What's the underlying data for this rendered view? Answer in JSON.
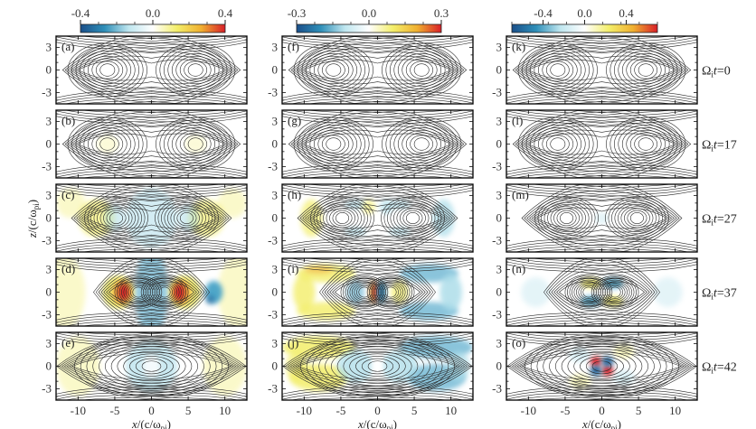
{
  "chart_data": {
    "type": "heatmap",
    "title": "",
    "xlabel": "x/(c/ωpi)",
    "ylabel": "z/(c/ωpi)",
    "xlim": [
      -13,
      13
    ],
    "ylim": [
      -4.5,
      4.5
    ],
    "xticks": [
      -10,
      -5,
      0,
      5,
      10
    ],
    "yticks": [
      3,
      0,
      -3
    ],
    "xtick_labels": [
      "-10",
      "-5",
      "0",
      "5",
      "10"
    ],
    "ytick_labels": [
      "3",
      "0",
      "-3"
    ],
    "grid": false,
    "colormap": [
      "#1a4f8a",
      "#2f8fb8",
      "#bfe6ef",
      "#ffffff",
      "#f3ee6a",
      "#f0b030",
      "#d81e28"
    ],
    "columns": [
      {
        "colorbar": {
          "min": -0.4,
          "max": 0.4,
          "tick_labels": [
            "-0.4",
            "0.0",
            "0.4"
          ],
          "ticks": [
            -0.4,
            0.0,
            0.4
          ]
        },
        "panels": [
          "(a)",
          "(b)",
          "(c)",
          "(d)",
          "(e)"
        ]
      },
      {
        "colorbar": {
          "min": -0.3,
          "max": 0.3,
          "tick_labels": [
            "-0.3",
            "0.0",
            "0.3"
          ],
          "ticks": [
            -0.3,
            0.0,
            0.3
          ]
        },
        "panels": [
          "(f)",
          "(g)",
          "(h)",
          "(i)",
          "(j)"
        ]
      },
      {
        "colorbar": {
          "min": -0.7,
          "max": 0.7,
          "tick_labels": [
            "-0.4",
            "0.0",
            "0.4"
          ],
          "ticks": [
            -0.4,
            0.0,
            0.4
          ]
        },
        "panels": [
          "(k)",
          "(l)",
          "(m)",
          "(n)",
          "(o)"
        ]
      }
    ],
    "rows": [
      {
        "time_label": "Ωit=0",
        "time": 0,
        "island_separation": 6.0
      },
      {
        "time_label": "Ωit=17",
        "time": 17,
        "island_separation": 6.0
      },
      {
        "time_label": "Ωit=27",
        "time": 27,
        "island_separation": 4.8
      },
      {
        "time_label": "Ωit=37",
        "time": 37,
        "island_separation": 1.8
      },
      {
        "time_label": "Ωit=42",
        "time": 42,
        "island_separation": 0.0
      }
    ],
    "features": {
      "d": "strong red/yellow lobes at x≈±3.5 around islands; blue vertical band at x≈0; blue blob near x≈8",
      "i": "yellow arc left, blue arc right, red/blue dipole at x≈0",
      "n": "quadrupolar yellow/blue pattern around merging islands",
      "o": "red/blue quadrupole at center x≈0"
    }
  },
  "labels": {
    "xlabel_main": "x/(c/ω",
    "xlabel_sub": "pi",
    "xlabel_close": ")",
    "ylabel_main": "z/(c/ω",
    "ylabel_sub": "pi",
    "ylabel_close": ")"
  }
}
